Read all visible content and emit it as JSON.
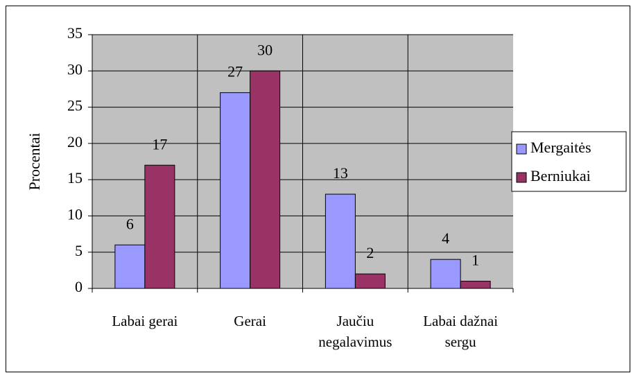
{
  "chart_data": {
    "type": "bar",
    "y_label": "Procentai",
    "categories": [
      "Labai gerai",
      "Gerai",
      "Jaučiu negalavimus",
      "Labai dažnai sergu"
    ],
    "series": [
      {
        "name": "Mergaitės",
        "color": "#9999ff",
        "values": [
          6,
          27,
          13,
          4
        ]
      },
      {
        "name": "Berniukai",
        "color": "#993366",
        "values": [
          17,
          30,
          2,
          1
        ]
      }
    ],
    "ylim": [
      0,
      35
    ],
    "yticks": [
      0,
      5,
      10,
      15,
      20,
      25,
      30,
      35
    ],
    "grid": true,
    "plot_background": "#c0c0c0",
    "legend": "right"
  }
}
